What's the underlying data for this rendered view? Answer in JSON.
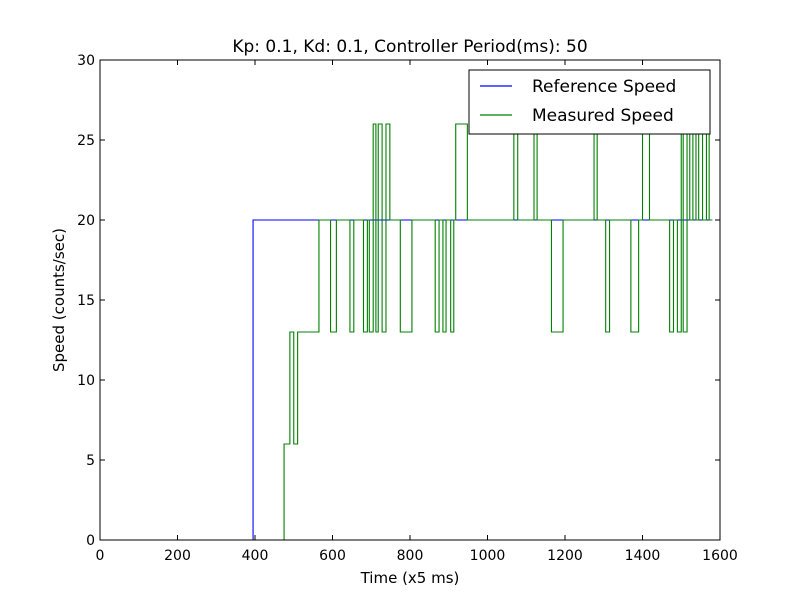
{
  "chart_data": {
    "type": "line",
    "title": "Kp: 0.1, Kd: 0.1, Controller Period(ms): 50",
    "xlabel": "Time (x5 ms)",
    "ylabel": "Speed (counts/sec)",
    "xlim": [
      0,
      1600
    ],
    "ylim": [
      0,
      30
    ],
    "x_ticks": [
      0,
      200,
      400,
      600,
      800,
      1000,
      1200,
      1400,
      1600
    ],
    "y_ticks": [
      0,
      5,
      10,
      15,
      20,
      25,
      30
    ],
    "x_tick_labels": [
      "0",
      "200",
      "400",
      "600",
      "800",
      "1000",
      "1200",
      "1400",
      "1600"
    ],
    "y_tick_labels": [
      "0",
      "5",
      "10",
      "15",
      "20",
      "25",
      "30"
    ],
    "grid": false,
    "legend_position": "top-right",
    "step": true,
    "series": [
      {
        "name": "Reference Speed",
        "color": "#0000ff",
        "points": [
          [
            0,
            0
          ],
          [
            395,
            0
          ],
          [
            395,
            20
          ],
          [
            1580,
            20
          ]
        ]
      },
      {
        "name": "Measured Speed",
        "color": "#008000",
        "points": [
          [
            0,
            0
          ],
          [
            475,
            0
          ],
          [
            475,
            6
          ],
          [
            490,
            6
          ],
          [
            490,
            13
          ],
          [
            500,
            13
          ],
          [
            500,
            6
          ],
          [
            510,
            6
          ],
          [
            510,
            13
          ],
          [
            565,
            13
          ],
          [
            565,
            20
          ],
          [
            595,
            20
          ],
          [
            595,
            13
          ],
          [
            610,
            13
          ],
          [
            610,
            20
          ],
          [
            645,
            20
          ],
          [
            645,
            13
          ],
          [
            655,
            13
          ],
          [
            655,
            20
          ],
          [
            680,
            20
          ],
          [
            680,
            13
          ],
          [
            690,
            13
          ],
          [
            690,
            20
          ],
          [
            695,
            20
          ],
          [
            695,
            13
          ],
          [
            705,
            13
          ],
          [
            705,
            26
          ],
          [
            712,
            26
          ],
          [
            712,
            13
          ],
          [
            718,
            13
          ],
          [
            718,
            26
          ],
          [
            728,
            26
          ],
          [
            728,
            13
          ],
          [
            738,
            13
          ],
          [
            738,
            26
          ],
          [
            748,
            26
          ],
          [
            748,
            20
          ],
          [
            775,
            20
          ],
          [
            775,
            13
          ],
          [
            805,
            13
          ],
          [
            805,
            20
          ],
          [
            865,
            20
          ],
          [
            865,
            13
          ],
          [
            875,
            13
          ],
          [
            875,
            20
          ],
          [
            885,
            20
          ],
          [
            885,
            13
          ],
          [
            893,
            13
          ],
          [
            893,
            20
          ],
          [
            905,
            20
          ],
          [
            905,
            13
          ],
          [
            913,
            13
          ],
          [
            913,
            20
          ],
          [
            918,
            20
          ],
          [
            918,
            26
          ],
          [
            948,
            26
          ],
          [
            948,
            20
          ],
          [
            1068,
            20
          ],
          [
            1068,
            26
          ],
          [
            1078,
            26
          ],
          [
            1078,
            20
          ],
          [
            1120,
            20
          ],
          [
            1120,
            26
          ],
          [
            1128,
            26
          ],
          [
            1128,
            20
          ],
          [
            1165,
            20
          ],
          [
            1165,
            13
          ],
          [
            1195,
            13
          ],
          [
            1195,
            20
          ],
          [
            1275,
            20
          ],
          [
            1275,
            26
          ],
          [
            1283,
            26
          ],
          [
            1283,
            20
          ],
          [
            1305,
            20
          ],
          [
            1305,
            13
          ],
          [
            1315,
            13
          ],
          [
            1315,
            20
          ],
          [
            1370,
            20
          ],
          [
            1370,
            13
          ],
          [
            1390,
            13
          ],
          [
            1390,
            20
          ],
          [
            1400,
            20
          ],
          [
            1400,
            26
          ],
          [
            1408,
            26
          ],
          [
            1408,
            26
          ],
          [
            1418,
            26
          ],
          [
            1418,
            20
          ],
          [
            1470,
            20
          ],
          [
            1470,
            13
          ],
          [
            1480,
            13
          ],
          [
            1480,
            20
          ],
          [
            1490,
            20
          ],
          [
            1490,
            13
          ],
          [
            1500,
            13
          ],
          [
            1500,
            26
          ],
          [
            1505,
            26
          ],
          [
            1505,
            13
          ],
          [
            1515,
            13
          ],
          [
            1515,
            26
          ],
          [
            1522,
            26
          ],
          [
            1522,
            20
          ],
          [
            1530,
            20
          ],
          [
            1530,
            26
          ],
          [
            1538,
            26
          ],
          [
            1538,
            20
          ],
          [
            1545,
            20
          ],
          [
            1545,
            26
          ],
          [
            1555,
            26
          ],
          [
            1555,
            20
          ],
          [
            1565,
            20
          ],
          [
            1565,
            26
          ],
          [
            1572,
            26
          ],
          [
            1572,
            20
          ],
          [
            1580,
            20
          ]
        ]
      }
    ]
  }
}
